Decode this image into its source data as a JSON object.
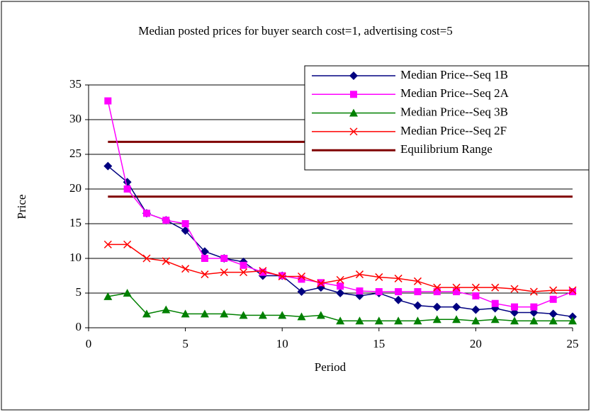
{
  "chart_data": {
    "type": "line",
    "title": "Median posted prices for buyer search cost=1, advertising cost=5",
    "x_label": "Period",
    "y_label": "Price",
    "x": [
      1,
      2,
      3,
      4,
      5,
      6,
      7,
      8,
      9,
      10,
      11,
      12,
      13,
      14,
      15,
      16,
      17,
      18,
      19,
      20,
      21,
      22,
      23,
      24,
      25
    ],
    "series": [
      {
        "name": "Median Price--Seq 1B",
        "color": "#000080",
        "marker": "diamond",
        "values": [
          23.3,
          21,
          16.5,
          15.5,
          14,
          11,
          10,
          9.5,
          7.5,
          7.5,
          5.2,
          5.8,
          5,
          4.6,
          5,
          4,
          3.2,
          3,
          3,
          2.6,
          2.8,
          2.2,
          2.2,
          2,
          1.6
        ]
      },
      {
        "name": "Median Price--Seq 2A",
        "color": "#ff00ff",
        "marker": "square",
        "values": [
          32.7,
          20,
          16.5,
          15.5,
          15,
          10,
          10,
          9,
          8,
          7.5,
          7,
          6.5,
          6,
          5.3,
          5.2,
          5.2,
          5.2,
          5.2,
          5.2,
          4.6,
          3.5,
          3,
          3,
          4.1,
          5.2
        ]
      },
      {
        "name": "Median Price--Seq 3B",
        "color": "#008000",
        "marker": "triangle",
        "values": [
          4.5,
          5,
          2,
          2.6,
          2,
          2,
          2,
          1.8,
          1.8,
          1.8,
          1.6,
          1.8,
          1,
          1,
          1,
          1,
          1,
          1.2,
          1.2,
          1,
          1.2,
          1,
          1,
          1,
          1
        ]
      },
      {
        "name": "Median Price--Seq 2F",
        "color": "#ff0000",
        "marker": "x",
        "values": [
          12,
          12,
          10,
          9.6,
          8.5,
          7.7,
          8,
          8,
          8.2,
          7.4,
          7.4,
          6.4,
          6.9,
          7.7,
          7.3,
          7.1,
          6.7,
          5.8,
          5.8,
          5.8,
          5.8,
          5.6,
          5.2,
          5.4,
          5.4
        ]
      }
    ],
    "equilibrium": {
      "name": "Equilibrium Range",
      "color": "#800000",
      "values": [
        26.8,
        18.9
      ]
    },
    "xlim": [
      0,
      25
    ],
    "xticks": [
      0,
      5,
      10,
      15,
      20,
      25
    ],
    "ylim": [
      0,
      35
    ],
    "yticks": [
      0,
      5,
      10,
      15,
      20,
      25,
      30,
      35
    ],
    "grid": true,
    "legend": "top-right"
  }
}
